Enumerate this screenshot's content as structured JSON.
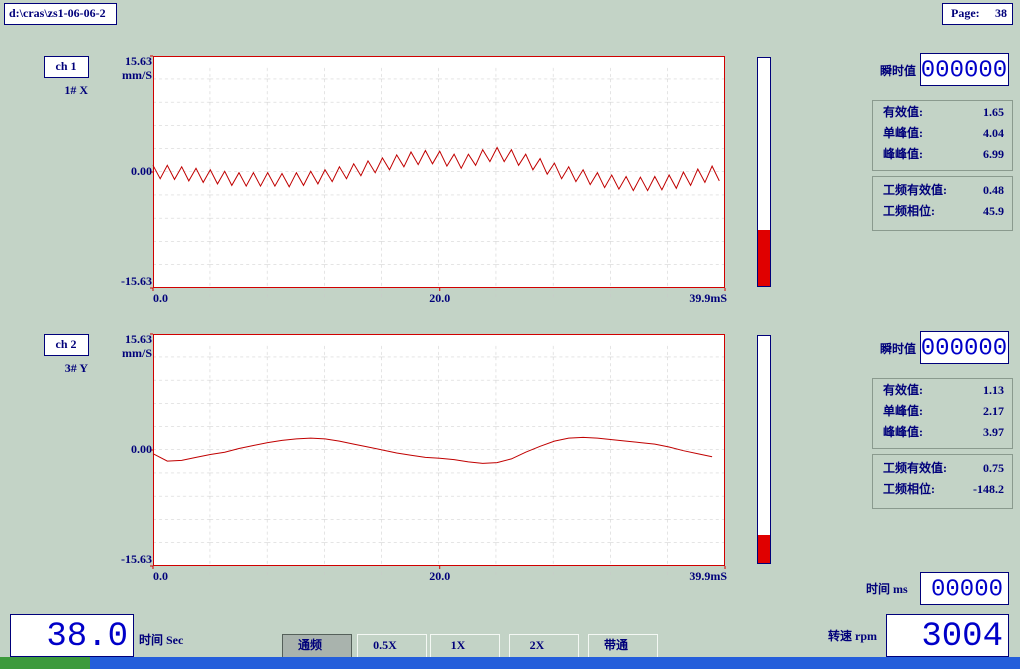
{
  "file_path": "d:\\cras\\zs1-06-06-2",
  "page_label": "Page:",
  "page_number": 38,
  "channels": [
    {
      "name": "ch 1",
      "sensor": "1# X",
      "unit": "mm/S",
      "chart": {
        "type": "line",
        "color": "#c00000",
        "grid": true,
        "xlim": [
          0,
          39.9
        ],
        "ylim": [
          -15.63,
          15.63
        ],
        "yticks": [
          -15.63,
          {
            "value": 0,
            "label": "0.00"
          },
          15.63
        ],
        "xticks": [
          {
            "value": 0,
            "label": "0.0"
          },
          {
            "value": 20,
            "label": "20.0"
          },
          {
            "value": 39.9,
            "label": "39.9mS"
          }
        ],
        "x": [
          0,
          0.5,
          1,
          1.5,
          2,
          2.5,
          3,
          3.5,
          4,
          4.5,
          5,
          5.5,
          6,
          6.5,
          7,
          7.5,
          8,
          8.5,
          9,
          9.5,
          10,
          10.5,
          11,
          11.5,
          12,
          12.5,
          13,
          13.5,
          14,
          14.5,
          15,
          15.5,
          16,
          16.5,
          17,
          17.5,
          18,
          18.5,
          19,
          19.5,
          20,
          20.5,
          21,
          21.5,
          22,
          22.5,
          23,
          23.5,
          24,
          24.5,
          25,
          25.5,
          26,
          26.5,
          27,
          27.5,
          28,
          28.5,
          29,
          29.5,
          30,
          30.5,
          31,
          31.5,
          32,
          32.5,
          33,
          33.5,
          34,
          34.5,
          35,
          35.5,
          36,
          36.5,
          37,
          37.5,
          38,
          38.5,
          39,
          39.5
        ],
        "values": [
          0.9,
          -0.9,
          0.9,
          -1.0,
          0.7,
          -1.2,
          0.5,
          -1.4,
          0.3,
          -1.6,
          0.1,
          -1.8,
          -0.1,
          -1.9,
          -0.1,
          -1.9,
          -0.1,
          -1.9,
          -0.2,
          -2.0,
          -0.1,
          -1.8,
          0.1,
          -1.6,
          0.3,
          -1.3,
          0.7,
          -0.9,
          1.1,
          -0.5,
          1.5,
          -0.1,
          1.9,
          0.3,
          2.3,
          0.7,
          2.7,
          1.0,
          2.9,
          1.1,
          2.8,
          0.8,
          2.4,
          0.5,
          2.4,
          0.9,
          3.0,
          1.4,
          3.3,
          1.4,
          3.0,
          0.9,
          2.4,
          0.3,
          1.8,
          -0.3,
          1.2,
          -0.9,
          0.7,
          -1.3,
          0.3,
          -1.7,
          -0.1,
          -2.1,
          -0.4,
          -2.3,
          -0.6,
          -2.5,
          -0.7,
          -2.5,
          -0.6,
          -2.4,
          -0.4,
          -2.2,
          0.0,
          -1.8,
          0.4,
          -1.4,
          0.8,
          -1.2
        ]
      },
      "instant_label": "瞬时值",
      "instant_display": "000000",
      "stats": [
        {
          "label": "有效值:",
          "value": 1.65
        },
        {
          "label": "单峰值:",
          "value": 4.04
        },
        {
          "label": "峰峰值:",
          "value": 6.99
        }
      ],
      "power": [
        {
          "label": "工频有效值:",
          "value": 0.48
        },
        {
          "label": "工频相位:",
          "value": 45.9
        }
      ]
    },
    {
      "name": "ch 2",
      "sensor": "3# Y",
      "unit": "mm/S",
      "chart": {
        "type": "line",
        "color": "#c00000",
        "grid": true,
        "xlim": [
          0,
          39.9
        ],
        "ylim": [
          -15.63,
          15.63
        ],
        "yticks": [
          -15.63,
          {
            "value": 0,
            "label": "0.00"
          },
          15.63
        ],
        "xticks": [
          {
            "value": 0,
            "label": "0.0"
          },
          {
            "value": 20,
            "label": "20.0"
          },
          {
            "value": 39.9,
            "label": "39.9mS"
          }
        ],
        "x": [
          0,
          1,
          2,
          3,
          4,
          5,
          6,
          7,
          8,
          9,
          10,
          11,
          12,
          13,
          14,
          15,
          16,
          17,
          18,
          19,
          20,
          21,
          22,
          23,
          24,
          25,
          26,
          27,
          28,
          29,
          30,
          31,
          32,
          33,
          34,
          35,
          36,
          37,
          38,
          39
        ],
        "values": [
          -0.5,
          -1.5,
          -1.4,
          -1.0,
          -0.6,
          -0.3,
          0.2,
          0.6,
          1.0,
          1.3,
          1.5,
          1.6,
          1.5,
          1.2,
          0.8,
          0.4,
          0.0,
          -0.4,
          -0.7,
          -1.0,
          -1.1,
          -1.3,
          -1.6,
          -1.8,
          -1.7,
          -1.2,
          -0.3,
          0.5,
          1.2,
          1.6,
          1.7,
          1.6,
          1.4,
          1.2,
          1.0,
          0.8,
          0.4,
          -0.1,
          -0.5,
          -0.9
        ]
      },
      "instant_label": "瞬时值",
      "instant_display": "000000",
      "stats": [
        {
          "label": "有效值:",
          "value": 1.13
        },
        {
          "label": "单峰值:",
          "value": 2.17
        },
        {
          "label": "峰峰值:",
          "value": 3.97
        }
      ],
      "power": [
        {
          "label": "工频有效值:",
          "value": 0.75
        },
        {
          "label": "工频相位:",
          "value": -148.2
        }
      ]
    }
  ],
  "time_sec": {
    "label": "时间 Sec",
    "display": "38.0"
  },
  "buttons": [
    "通频",
    "0.5X",
    "1X",
    "2X",
    "带通"
  ],
  "time_ms": {
    "label": "时间 ms",
    "display": "00000"
  },
  "speed": {
    "label": "转速 rpm",
    "display": "3004"
  }
}
